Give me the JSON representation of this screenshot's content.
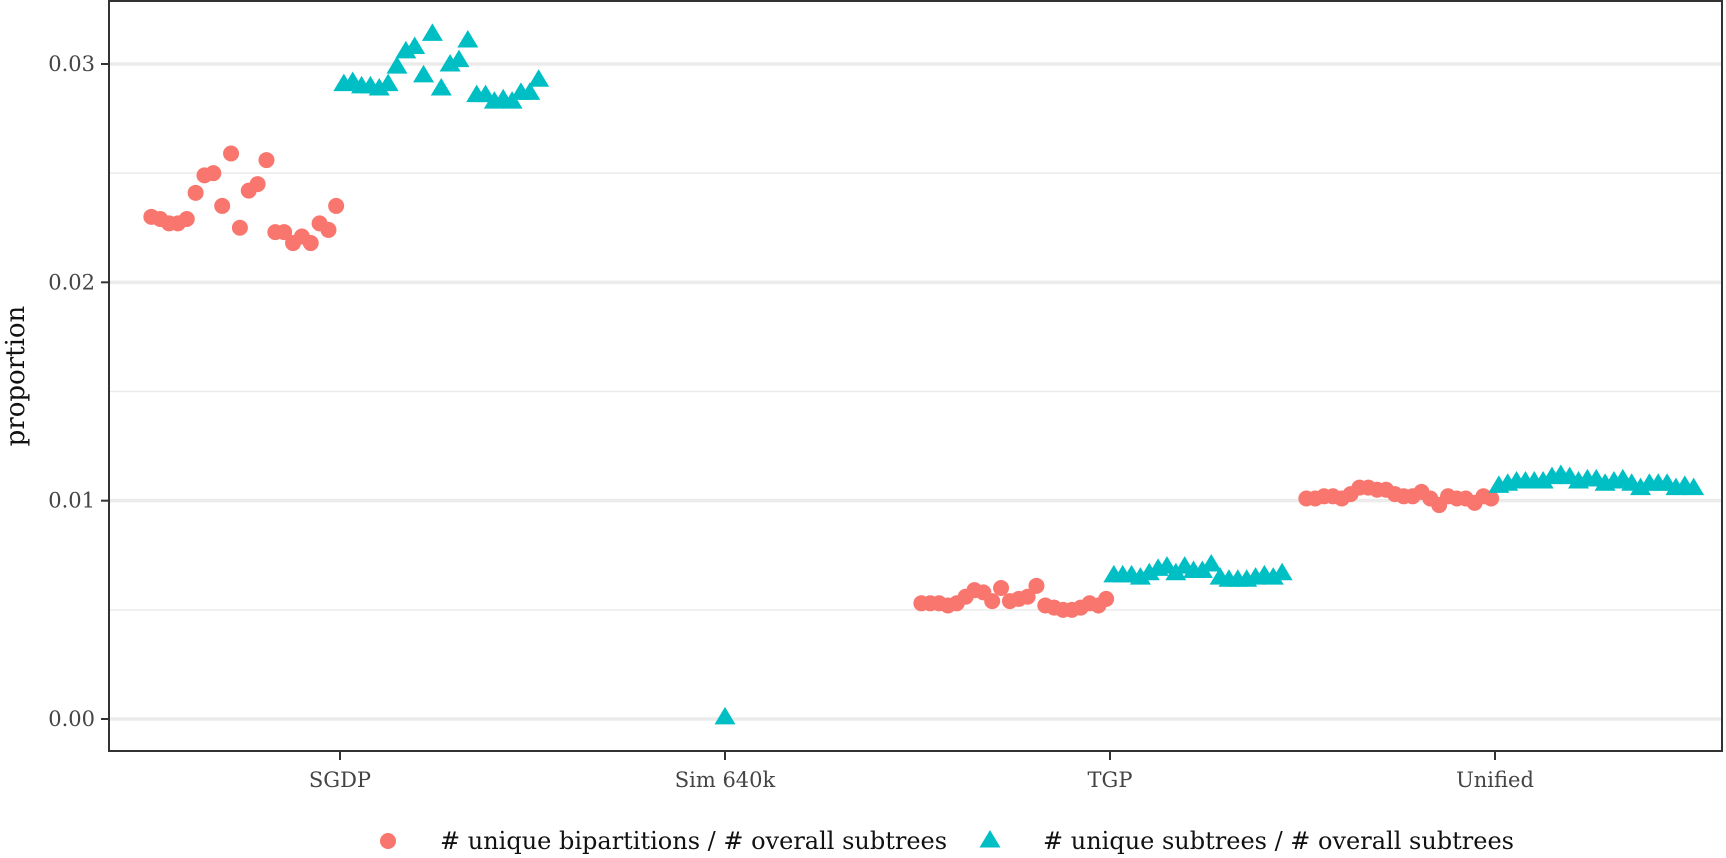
{
  "chart_data": {
    "type": "scatter",
    "title": "",
    "xlabel": "",
    "ylabel": "proportion",
    "categories": [
      "SGDP",
      "Sim 640k",
      "TGP",
      "Unified"
    ],
    "ylim": [
      -0.0015,
      0.033
    ],
    "yticks": [
      0.0,
      0.01,
      0.02,
      0.03
    ],
    "ytick_labels": [
      "0.00",
      "0.01",
      "0.02",
      "0.03"
    ],
    "grid": true,
    "legend_position": "bottom",
    "colors": {
      "bipartitions": "#F8766D",
      "subtrees": "#00BFC4",
      "grid": "#EBEBEB",
      "border": "#333333"
    },
    "series": [
      {
        "name": "# unique bipartitions / # overall subtrees",
        "shape": "circle",
        "color": "#F8766D",
        "points": [
          {
            "x": "SGDP",
            "offset": -0.49,
            "y": 0.023
          },
          {
            "x": "SGDP",
            "offset": -0.467,
            "y": 0.0229
          },
          {
            "x": "SGDP",
            "offset": -0.444,
            "y": 0.0227
          },
          {
            "x": "SGDP",
            "offset": -0.421,
            "y": 0.0227
          },
          {
            "x": "SGDP",
            "offset": -0.398,
            "y": 0.0229
          },
          {
            "x": "SGDP",
            "offset": -0.375,
            "y": 0.0241
          },
          {
            "x": "SGDP",
            "offset": -0.352,
            "y": 0.0249
          },
          {
            "x": "SGDP",
            "offset": -0.329,
            "y": 0.025
          },
          {
            "x": "SGDP",
            "offset": -0.306,
            "y": 0.0235
          },
          {
            "x": "SGDP",
            "offset": -0.283,
            "y": 0.0259
          },
          {
            "x": "SGDP",
            "offset": -0.26,
            "y": 0.0225
          },
          {
            "x": "SGDP",
            "offset": -0.237,
            "y": 0.0242
          },
          {
            "x": "SGDP",
            "offset": -0.214,
            "y": 0.0245
          },
          {
            "x": "SGDP",
            "offset": -0.191,
            "y": 0.0256
          },
          {
            "x": "SGDP",
            "offset": -0.168,
            "y": 0.0223
          },
          {
            "x": "SGDP",
            "offset": -0.145,
            "y": 0.0223
          },
          {
            "x": "SGDP",
            "offset": -0.122,
            "y": 0.0218
          },
          {
            "x": "SGDP",
            "offset": -0.099,
            "y": 0.0221
          },
          {
            "x": "SGDP",
            "offset": -0.076,
            "y": 0.0218
          },
          {
            "x": "SGDP",
            "offset": -0.053,
            "y": 0.0227
          },
          {
            "x": "SGDP",
            "offset": -0.03,
            "y": 0.0224
          },
          {
            "x": "SGDP",
            "offset": -0.01,
            "y": 0.0235
          },
          {
            "x": "TGP",
            "offset": -0.49,
            "y": 0.0053
          },
          {
            "x": "TGP",
            "offset": -0.467,
            "y": 0.0053
          },
          {
            "x": "TGP",
            "offset": -0.444,
            "y": 0.0053
          },
          {
            "x": "TGP",
            "offset": -0.421,
            "y": 0.0052
          },
          {
            "x": "TGP",
            "offset": -0.398,
            "y": 0.0053
          },
          {
            "x": "TGP",
            "offset": -0.375,
            "y": 0.0056
          },
          {
            "x": "TGP",
            "offset": -0.352,
            "y": 0.0059
          },
          {
            "x": "TGP",
            "offset": -0.329,
            "y": 0.0058
          },
          {
            "x": "TGP",
            "offset": -0.306,
            "y": 0.0054
          },
          {
            "x": "TGP",
            "offset": -0.283,
            "y": 0.006
          },
          {
            "x": "TGP",
            "offset": -0.26,
            "y": 0.0054
          },
          {
            "x": "TGP",
            "offset": -0.237,
            "y": 0.0055
          },
          {
            "x": "TGP",
            "offset": -0.214,
            "y": 0.0056
          },
          {
            "x": "TGP",
            "offset": -0.191,
            "y": 0.0061
          },
          {
            "x": "TGP",
            "offset": -0.168,
            "y": 0.0052
          },
          {
            "x": "TGP",
            "offset": -0.145,
            "y": 0.0051
          },
          {
            "x": "TGP",
            "offset": -0.122,
            "y": 0.005
          },
          {
            "x": "TGP",
            "offset": -0.099,
            "y": 0.005
          },
          {
            "x": "TGP",
            "offset": -0.076,
            "y": 0.0051
          },
          {
            "x": "TGP",
            "offset": -0.053,
            "y": 0.0053
          },
          {
            "x": "TGP",
            "offset": -0.03,
            "y": 0.0052
          },
          {
            "x": "TGP",
            "offset": -0.01,
            "y": 0.0055
          },
          {
            "x": "Unified",
            "offset": -0.49,
            "y": 0.0101
          },
          {
            "x": "Unified",
            "offset": -0.467,
            "y": 0.0101
          },
          {
            "x": "Unified",
            "offset": -0.444,
            "y": 0.0102
          },
          {
            "x": "Unified",
            "offset": -0.421,
            "y": 0.0102
          },
          {
            "x": "Unified",
            "offset": -0.398,
            "y": 0.0101
          },
          {
            "x": "Unified",
            "offset": -0.375,
            "y": 0.0103
          },
          {
            "x": "Unified",
            "offset": -0.352,
            "y": 0.0106
          },
          {
            "x": "Unified",
            "offset": -0.329,
            "y": 0.0106
          },
          {
            "x": "Unified",
            "offset": -0.306,
            "y": 0.0105
          },
          {
            "x": "Unified",
            "offset": -0.283,
            "y": 0.0105
          },
          {
            "x": "Unified",
            "offset": -0.26,
            "y": 0.0103
          },
          {
            "x": "Unified",
            "offset": -0.237,
            "y": 0.0102
          },
          {
            "x": "Unified",
            "offset": -0.214,
            "y": 0.0102
          },
          {
            "x": "Unified",
            "offset": -0.191,
            "y": 0.0104
          },
          {
            "x": "Unified",
            "offset": -0.168,
            "y": 0.0101
          },
          {
            "x": "Unified",
            "offset": -0.145,
            "y": 0.0098
          },
          {
            "x": "Unified",
            "offset": -0.122,
            "y": 0.0102
          },
          {
            "x": "Unified",
            "offset": -0.099,
            "y": 0.0101
          },
          {
            "x": "Unified",
            "offset": -0.076,
            "y": 0.0101
          },
          {
            "x": "Unified",
            "offset": -0.053,
            "y": 0.0099
          },
          {
            "x": "Unified",
            "offset": -0.03,
            "y": 0.0102
          },
          {
            "x": "Unified",
            "offset": -0.01,
            "y": 0.0101
          }
        ]
      },
      {
        "name": "# unique subtrees / # overall subtrees",
        "shape": "triangle",
        "color": "#00BFC4",
        "points": [
          {
            "x": "SGDP",
            "offset": 0.01,
            "y": 0.0291
          },
          {
            "x": "SGDP",
            "offset": 0.033,
            "y": 0.0292
          },
          {
            "x": "SGDP",
            "offset": 0.056,
            "y": 0.029
          },
          {
            "x": "SGDP",
            "offset": 0.079,
            "y": 0.029
          },
          {
            "x": "SGDP",
            "offset": 0.102,
            "y": 0.0289
          },
          {
            "x": "SGDP",
            "offset": 0.125,
            "y": 0.0291
          },
          {
            "x": "SGDP",
            "offset": 0.148,
            "y": 0.0299
          },
          {
            "x": "SGDP",
            "offset": 0.171,
            "y": 0.0306
          },
          {
            "x": "SGDP",
            "offset": 0.194,
            "y": 0.0308
          },
          {
            "x": "SGDP",
            "offset": 0.217,
            "y": 0.0295
          },
          {
            "x": "SGDP",
            "offset": 0.24,
            "y": 0.0314
          },
          {
            "x": "SGDP",
            "offset": 0.263,
            "y": 0.0289
          },
          {
            "x": "SGDP",
            "offset": 0.286,
            "y": 0.03
          },
          {
            "x": "SGDP",
            "offset": 0.309,
            "y": 0.0302
          },
          {
            "x": "SGDP",
            "offset": 0.332,
            "y": 0.0311
          },
          {
            "x": "SGDP",
            "offset": 0.355,
            "y": 0.0286
          },
          {
            "x": "SGDP",
            "offset": 0.378,
            "y": 0.0286
          },
          {
            "x": "SGDP",
            "offset": 0.401,
            "y": 0.0283
          },
          {
            "x": "SGDP",
            "offset": 0.424,
            "y": 0.0284
          },
          {
            "x": "SGDP",
            "offset": 0.447,
            "y": 0.0283
          },
          {
            "x": "SGDP",
            "offset": 0.47,
            "y": 0.0287
          },
          {
            "x": "SGDP",
            "offset": 0.493,
            "y": 0.0287
          },
          {
            "x": "SGDP",
            "offset": 0.516,
            "y": 0.0293
          },
          {
            "x": "Sim 640k",
            "offset": 0.0,
            "y": 0.0001
          },
          {
            "x": "TGP",
            "offset": 0.01,
            "y": 0.0066
          },
          {
            "x": "TGP",
            "offset": 0.033,
            "y": 0.0066
          },
          {
            "x": "TGP",
            "offset": 0.056,
            "y": 0.0066
          },
          {
            "x": "TGP",
            "offset": 0.079,
            "y": 0.0065
          },
          {
            "x": "TGP",
            "offset": 0.102,
            "y": 0.0067
          },
          {
            "x": "TGP",
            "offset": 0.125,
            "y": 0.0069
          },
          {
            "x": "TGP",
            "offset": 0.148,
            "y": 0.007
          },
          {
            "x": "TGP",
            "offset": 0.171,
            "y": 0.0067
          },
          {
            "x": "TGP",
            "offset": 0.194,
            "y": 0.007
          },
          {
            "x": "TGP",
            "offset": 0.217,
            "y": 0.0068
          },
          {
            "x": "TGP",
            "offset": 0.24,
            "y": 0.0068
          },
          {
            "x": "TGP",
            "offset": 0.263,
            "y": 0.0071
          },
          {
            "x": "TGP",
            "offset": 0.286,
            "y": 0.0065
          },
          {
            "x": "TGP",
            "offset": 0.309,
            "y": 0.0064
          },
          {
            "x": "TGP",
            "offset": 0.332,
            "y": 0.0064
          },
          {
            "x": "TGP",
            "offset": 0.355,
            "y": 0.0064
          },
          {
            "x": "TGP",
            "offset": 0.378,
            "y": 0.0065
          },
          {
            "x": "TGP",
            "offset": 0.401,
            "y": 0.0066
          },
          {
            "x": "TGP",
            "offset": 0.424,
            "y": 0.0065
          },
          {
            "x": "TGP",
            "offset": 0.447,
            "y": 0.0067
          },
          {
            "x": "Unified",
            "offset": 0.01,
            "y": 0.0107
          },
          {
            "x": "Unified",
            "offset": 0.033,
            "y": 0.0108
          },
          {
            "x": "Unified",
            "offset": 0.056,
            "y": 0.0109
          },
          {
            "x": "Unified",
            "offset": 0.079,
            "y": 0.0109
          },
          {
            "x": "Unified",
            "offset": 0.102,
            "y": 0.0109
          },
          {
            "x": "Unified",
            "offset": 0.125,
            "y": 0.0109
          },
          {
            "x": "Unified",
            "offset": 0.148,
            "y": 0.0111
          },
          {
            "x": "Unified",
            "offset": 0.171,
            "y": 0.0112
          },
          {
            "x": "Unified",
            "offset": 0.194,
            "y": 0.0111
          },
          {
            "x": "Unified",
            "offset": 0.217,
            "y": 0.0109
          },
          {
            "x": "Unified",
            "offset": 0.24,
            "y": 0.011
          },
          {
            "x": "Unified",
            "offset": 0.263,
            "y": 0.011
          },
          {
            "x": "Unified",
            "offset": 0.286,
            "y": 0.0108
          },
          {
            "x": "Unified",
            "offset": 0.309,
            "y": 0.0109
          },
          {
            "x": "Unified",
            "offset": 0.332,
            "y": 0.011
          },
          {
            "x": "Unified",
            "offset": 0.355,
            "y": 0.0108
          },
          {
            "x": "Unified",
            "offset": 0.378,
            "y": 0.0106
          },
          {
            "x": "Unified",
            "offset": 0.401,
            "y": 0.0108
          },
          {
            "x": "Unified",
            "offset": 0.424,
            "y": 0.0108
          },
          {
            "x": "Unified",
            "offset": 0.447,
            "y": 0.0108
          },
          {
            "x": "Unified",
            "offset": 0.47,
            "y": 0.0106
          },
          {
            "x": "Unified",
            "offset": 0.493,
            "y": 0.0107
          },
          {
            "x": "Unified",
            "offset": 0.516,
            "y": 0.0106
          }
        ]
      }
    ]
  }
}
